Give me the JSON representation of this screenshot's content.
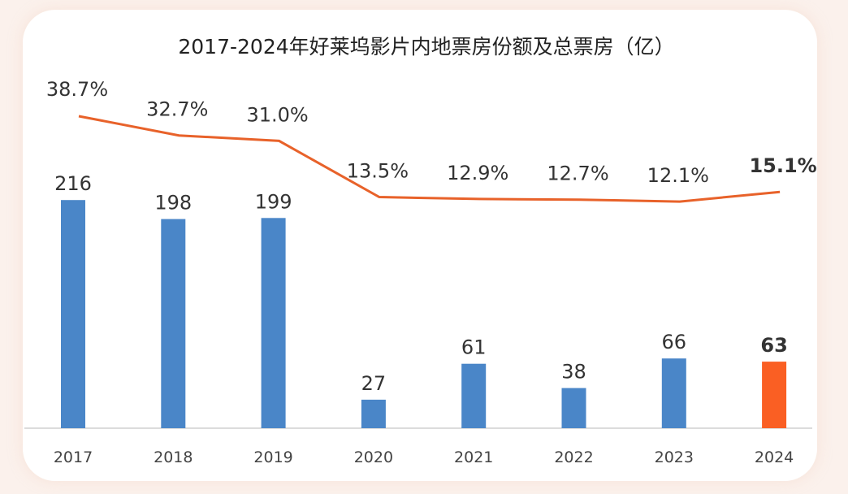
{
  "chart_data": {
    "type": "bar+line",
    "title": "2017-2024年好莱坞影片内地票房份额及总票房（亿）",
    "categories": [
      "2017",
      "2018",
      "2019",
      "2020",
      "2021",
      "2022",
      "2023",
      "2024"
    ],
    "series": [
      {
        "type": "bar",
        "values": [
          216,
          198,
          199,
          27,
          61,
          38,
          66,
          63
        ],
        "labels": [
          "216",
          "198",
          "199",
          "27",
          "61",
          "38",
          "66",
          "63"
        ]
      },
      {
        "type": "line",
        "values": [
          38.7,
          32.7,
          31.0,
          13.5,
          12.9,
          12.7,
          12.1,
          15.1
        ],
        "labels": [
          "38.7%",
          "32.7%",
          "31.0%",
          "13.5%",
          "12.9%",
          "12.7%",
          "12.1%",
          "15.1%"
        ]
      }
    ],
    "highlight_index": 7,
    "grid": false,
    "colors": {
      "bar": "#4a86c8",
      "bar_highlight": "#fa5f23",
      "line": "#e8622a",
      "label": "#333333",
      "label_highlight": "#d90010",
      "axis": "#d0d0d0"
    }
  }
}
